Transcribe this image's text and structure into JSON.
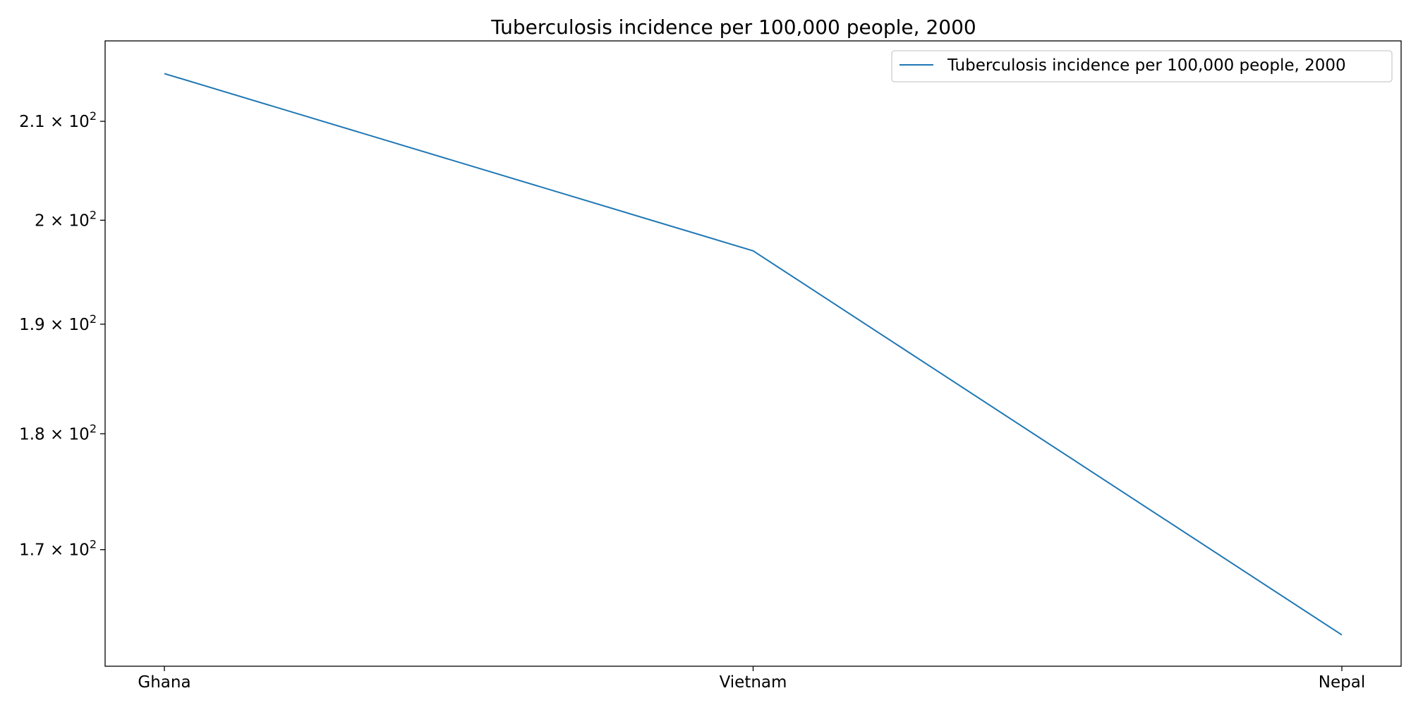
{
  "chart_data": {
    "type": "line",
    "title": "Tuberculosis incidence per 100,000 people, 2000",
    "xlabel": "",
    "ylabel": "",
    "yscale": "log",
    "categories": [
      "Ghana",
      "Vietnam",
      "Nepal"
    ],
    "series": [
      {
        "name": "Tuberculosis incidence per 100,000 people, 2000",
        "color": "#1f77b4",
        "values": [
          215,
          197,
          163
        ]
      }
    ],
    "ylim": [
      160.5,
      218.5
    ],
    "yticks": [
      {
        "value": 170,
        "mantissa": "1.7",
        "base": "10",
        "exp": "2"
      },
      {
        "value": 180,
        "mantissa": "1.8",
        "base": "10",
        "exp": "2"
      },
      {
        "value": 190,
        "mantissa": "1.9",
        "base": "10",
        "exp": "2"
      },
      {
        "value": 200,
        "mantissa": "2",
        "base": "10",
        "exp": "2"
      },
      {
        "value": 210,
        "mantissa": "2.1",
        "base": "10",
        "exp": "2"
      }
    ],
    "grid": false,
    "legend_position": "top-right"
  }
}
